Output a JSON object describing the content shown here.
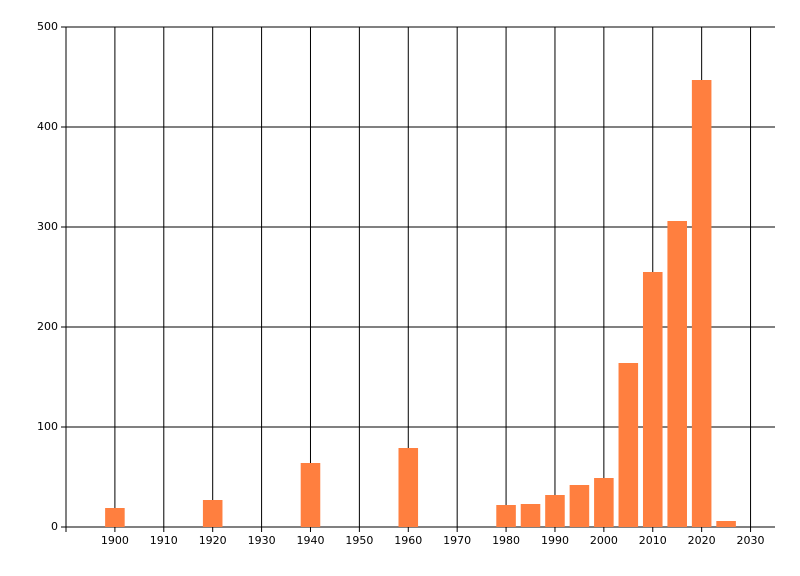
{
  "chart_data": {
    "type": "bar",
    "x": [
      1900,
      1920,
      1940,
      1960,
      1980,
      1985,
      1990,
      1995,
      2000,
      2005,
      2010,
      2015,
      2020,
      2025
    ],
    "values": [
      19,
      27,
      64,
      79,
      22,
      23,
      32,
      42,
      49,
      164,
      255,
      306,
      447,
      6
    ],
    "color": "#ff7f3f",
    "xlim": [
      1890,
      2035
    ],
    "xticks": [
      1900,
      1910,
      1920,
      1930,
      1940,
      1950,
      1960,
      1970,
      1980,
      1990,
      2000,
      2010,
      2020,
      2030
    ],
    "ylim": [
      0,
      500
    ],
    "yticks": [
      0,
      100,
      200,
      300,
      400,
      500
    ],
    "grid": true
  }
}
